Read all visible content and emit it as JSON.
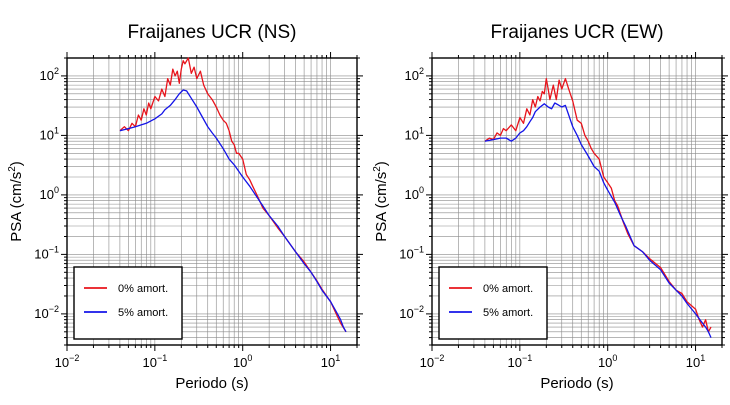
{
  "chart_data": [
    {
      "type": "line",
      "title": "Fraijanes UCR (NS)",
      "xlabel": "Periodo (s)",
      "ylabel": "PSA (cm/s",
      "ylabel_sup": "2",
      "ylabel_close": ")",
      "xscale": "log",
      "yscale": "log",
      "xlim": [
        0.01,
        20
      ],
      "ylim": [
        0.003,
        200
      ],
      "grid": true,
      "legend_position": "bottom-left",
      "x_ticks": [
        {
          "base": "10",
          "exp": "−2"
        },
        {
          "base": "10",
          "exp": "−1"
        },
        {
          "base": "10",
          "exp": "0"
        },
        {
          "base": "10",
          "exp": "1"
        }
      ],
      "y_ticks": [
        {
          "base": "10",
          "exp": "−2"
        },
        {
          "base": "10",
          "exp": "−1"
        },
        {
          "base": "10",
          "exp": "0"
        },
        {
          "base": "10",
          "exp": "1"
        },
        {
          "base": "10",
          "exp": "2"
        }
      ],
      "series": [
        {
          "name": "0% amort.",
          "color": "#e8141c",
          "points": [
            [
              0.04,
              12
            ],
            [
              0.045,
              14
            ],
            [
              0.05,
              12
            ],
            [
              0.055,
              16
            ],
            [
              0.06,
              14
            ],
            [
              0.065,
              22
            ],
            [
              0.07,
              18
            ],
            [
              0.075,
              28
            ],
            [
              0.08,
              22
            ],
            [
              0.085,
              35
            ],
            [
              0.09,
              28
            ],
            [
              0.1,
              45
            ],
            [
              0.11,
              38
            ],
            [
              0.12,
              60
            ],
            [
              0.13,
              45
            ],
            [
              0.14,
              90
            ],
            [
              0.15,
              70
            ],
            [
              0.16,
              130
            ],
            [
              0.17,
              100
            ],
            [
              0.18,
              120
            ],
            [
              0.19,
              75
            ],
            [
              0.2,
              130
            ],
            [
              0.21,
              180
            ],
            [
              0.22,
              160
            ],
            [
              0.24,
              200
            ],
            [
              0.26,
              110
            ],
            [
              0.28,
              140
            ],
            [
              0.3,
              90
            ],
            [
              0.33,
              120
            ],
            [
              0.36,
              70
            ],
            [
              0.4,
              50
            ],
            [
              0.45,
              40
            ],
            [
              0.5,
              30
            ],
            [
              0.55,
              22
            ],
            [
              0.6,
              18
            ],
            [
              0.65,
              16
            ],
            [
              0.7,
              12
            ],
            [
              0.75,
              8
            ],
            [
              0.8,
              7
            ],
            [
              0.85,
              5
            ],
            [
              0.9,
              5
            ],
            [
              1.0,
              4
            ],
            [
              1.1,
              2.2
            ],
            [
              1.2,
              1.8
            ],
            [
              1.3,
              1.4
            ],
            [
              1.5,
              0.9
            ],
            [
              1.7,
              0.6
            ],
            [
              2.0,
              0.45
            ],
            [
              2.5,
              0.28
            ],
            [
              3,
              0.2
            ],
            [
              4,
              0.11
            ],
            [
              5,
              0.075
            ],
            [
              6,
              0.05
            ],
            [
              7,
              0.036
            ],
            [
              8,
              0.026
            ],
            [
              10,
              0.016
            ],
            [
              12,
              0.009
            ],
            [
              13,
              0.007
            ],
            [
              15,
              0.005
            ]
          ]
        },
        {
          "name": "5% amort.",
          "color": "#1414e8",
          "points": [
            [
              0.04,
              12
            ],
            [
              0.05,
              13
            ],
            [
              0.06,
              14
            ],
            [
              0.07,
              15
            ],
            [
              0.08,
              16
            ],
            [
              0.1,
              19
            ],
            [
              0.12,
              23
            ],
            [
              0.13,
              27
            ],
            [
              0.15,
              32
            ],
            [
              0.17,
              40
            ],
            [
              0.19,
              50
            ],
            [
              0.21,
              58
            ],
            [
              0.23,
              56
            ],
            [
              0.26,
              42
            ],
            [
              0.3,
              30
            ],
            [
              0.35,
              20
            ],
            [
              0.4,
              14
            ],
            [
              0.45,
              11
            ],
            [
              0.5,
              9
            ],
            [
              0.6,
              6
            ],
            [
              0.7,
              4
            ],
            [
              0.8,
              3.2
            ],
            [
              0.9,
              2.5
            ],
            [
              1.0,
              2
            ],
            [
              1.2,
              1.4
            ],
            [
              1.4,
              1
            ],
            [
              1.7,
              0.65
            ],
            [
              2,
              0.45
            ],
            [
              2.5,
              0.3
            ],
            [
              3,
              0.2
            ],
            [
              4,
              0.11
            ],
            [
              5,
              0.07
            ],
            [
              6,
              0.05
            ],
            [
              7,
              0.035
            ],
            [
              8,
              0.025
            ],
            [
              10,
              0.016
            ],
            [
              12,
              0.01
            ],
            [
              13,
              0.008
            ],
            [
              14,
              0.006
            ],
            [
              15,
              0.005
            ]
          ]
        }
      ]
    },
    {
      "type": "line",
      "title": "Fraijanes UCR (EW)",
      "xlabel": "Periodo (s)",
      "ylabel": "PSA (cm/s",
      "ylabel_sup": "2",
      "ylabel_close": ")",
      "xscale": "log",
      "yscale": "log",
      "xlim": [
        0.01,
        20
      ],
      "ylim": [
        0.003,
        200
      ],
      "grid": true,
      "legend_position": "bottom-left",
      "x_ticks": [
        {
          "base": "10",
          "exp": "−2"
        },
        {
          "base": "10",
          "exp": "−1"
        },
        {
          "base": "10",
          "exp": "0"
        },
        {
          "base": "10",
          "exp": "1"
        }
      ],
      "y_ticks": [
        {
          "base": "10",
          "exp": "−2"
        },
        {
          "base": "10",
          "exp": "−1"
        },
        {
          "base": "10",
          "exp": "0"
        },
        {
          "base": "10",
          "exp": "1"
        },
        {
          "base": "10",
          "exp": "2"
        }
      ],
      "series": [
        {
          "name": "0% amort.",
          "color": "#e8141c",
          "points": [
            [
              0.04,
              8
            ],
            [
              0.045,
              9
            ],
            [
              0.05,
              8.5
            ],
            [
              0.055,
              11
            ],
            [
              0.06,
              10
            ],
            [
              0.065,
              13
            ],
            [
              0.07,
              12
            ],
            [
              0.08,
              15
            ],
            [
              0.09,
              12
            ],
            [
              0.1,
              20
            ],
            [
              0.11,
              16
            ],
            [
              0.12,
              28
            ],
            [
              0.13,
              22
            ],
            [
              0.14,
              40
            ],
            [
              0.15,
              30
            ],
            [
              0.16,
              45
            ],
            [
              0.17,
              38
            ],
            [
              0.18,
              55
            ],
            [
              0.19,
              50
            ],
            [
              0.2,
              90
            ],
            [
              0.21,
              60
            ],
            [
              0.22,
              40
            ],
            [
              0.24,
              70
            ],
            [
              0.26,
              40
            ],
            [
              0.28,
              85
            ],
            [
              0.3,
              60
            ],
            [
              0.33,
              90
            ],
            [
              0.36,
              60
            ],
            [
              0.4,
              38
            ],
            [
              0.45,
              18
            ],
            [
              0.5,
              16
            ],
            [
              0.55,
              10
            ],
            [
              0.6,
              8
            ],
            [
              0.65,
              6
            ],
            [
              0.7,
              5
            ],
            [
              0.8,
              4
            ],
            [
              0.9,
              2
            ],
            [
              1.0,
              1.6
            ],
            [
              1.1,
              1.3
            ],
            [
              1.2,
              0.8
            ],
            [
              1.3,
              0.65
            ],
            [
              1.5,
              0.35
            ],
            [
              1.7,
              0.22
            ],
            [
              2.0,
              0.14
            ],
            [
              2.5,
              0.11
            ],
            [
              3,
              0.085
            ],
            [
              4,
              0.06
            ],
            [
              5,
              0.035
            ],
            [
              6,
              0.025
            ],
            [
              7,
              0.022
            ],
            [
              8,
              0.016
            ],
            [
              10,
              0.012
            ],
            [
              11,
              0.008
            ],
            [
              12,
              0.006
            ],
            [
              13,
              0.008
            ],
            [
              14,
              0.005
            ],
            [
              15,
              0.006
            ]
          ]
        },
        {
          "name": "5% amort.",
          "color": "#1414e8",
          "points": [
            [
              0.04,
              8
            ],
            [
              0.05,
              8.5
            ],
            [
              0.06,
              9
            ],
            [
              0.07,
              9
            ],
            [
              0.08,
              8
            ],
            [
              0.09,
              9
            ],
            [
              0.1,
              11
            ],
            [
              0.11,
              12
            ],
            [
              0.12,
              14
            ],
            [
              0.13,
              17
            ],
            [
              0.14,
              20
            ],
            [
              0.15,
              25
            ],
            [
              0.17,
              30
            ],
            [
              0.19,
              34
            ],
            [
              0.21,
              30
            ],
            [
              0.23,
              28
            ],
            [
              0.25,
              35
            ],
            [
              0.27,
              33
            ],
            [
              0.3,
              30
            ],
            [
              0.33,
              32
            ],
            [
              0.36,
              22
            ],
            [
              0.4,
              14
            ],
            [
              0.45,
              10
            ],
            [
              0.5,
              7
            ],
            [
              0.6,
              4.5
            ],
            [
              0.7,
              3
            ],
            [
              0.8,
              2.5
            ],
            [
              0.9,
              1.6
            ],
            [
              1.0,
              1.2
            ],
            [
              1.2,
              0.75
            ],
            [
              1.4,
              0.45
            ],
            [
              1.6,
              0.3
            ],
            [
              2.0,
              0.14
            ],
            [
              2.5,
              0.11
            ],
            [
              3,
              0.08
            ],
            [
              4,
              0.055
            ],
            [
              5,
              0.033
            ],
            [
              6,
              0.025
            ],
            [
              7,
              0.02
            ],
            [
              8,
              0.015
            ],
            [
              10,
              0.01
            ],
            [
              12,
              0.007
            ],
            [
              13,
              0.006
            ],
            [
              14,
              0.005
            ],
            [
              15,
              0.004
            ]
          ]
        }
      ]
    }
  ]
}
